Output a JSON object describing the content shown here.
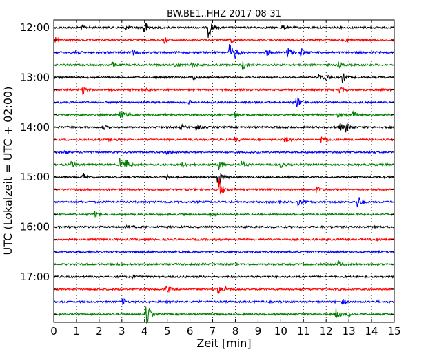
{
  "chart_data": {
    "type": "line",
    "title": "BW.BE1..HHZ 2017-08-31",
    "xlabel": "Zeit  [min]",
    "ylabel": "UTC (Lokalzeit = UTC + 02:00)",
    "xlim": [
      0,
      15
    ],
    "x_ticks": [
      0,
      1,
      2,
      3,
      4,
      5,
      6,
      7,
      8,
      9,
      10,
      11,
      12,
      13,
      14,
      15
    ],
    "x_tick_labels": [
      "0",
      "1",
      "2",
      "3",
      "4",
      "5",
      "6",
      "7",
      "8",
      "9",
      "10",
      "11",
      "12",
      "13",
      "14",
      "15"
    ],
    "grid": "dotted vertical lines at each minute",
    "y_tick_labels": [
      "12:00",
      "13:00",
      "14:00",
      "15:00",
      "16:00",
      "17:00"
    ],
    "line_colors": [
      "#000000",
      "#ff0000",
      "#0000ff",
      "#008000"
    ],
    "series": [
      {
        "start": "12:00",
        "events": [
          [
            4.0,
            1.0
          ],
          [
            6.85,
            1.1
          ],
          [
            1.2,
            0.25
          ],
          [
            3.2,
            0.2
          ],
          [
            10.1,
            0.2
          ]
        ]
      },
      {
        "start": "12:15",
        "events": [
          [
            0.1,
            0.3
          ],
          [
            4.9,
            0.3
          ],
          [
            7.8,
            0.3
          ],
          [
            12.9,
            0.25
          ]
        ]
      },
      {
        "start": "12:30",
        "events": [
          [
            0.9,
            0.3
          ],
          [
            3.5,
            0.25
          ],
          [
            7.75,
            1.0
          ],
          [
            8.0,
            0.5
          ],
          [
            9.4,
            0.4
          ],
          [
            10.3,
            0.7
          ],
          [
            10.9,
            0.5
          ]
        ]
      },
      {
        "start": "12:45",
        "events": [
          [
            2.6,
            0.3
          ],
          [
            5.3,
            0.3
          ],
          [
            6.05,
            0.4
          ],
          [
            8.35,
            0.5
          ],
          [
            12.55,
            0.3
          ]
        ]
      },
      {
        "start": "13:00",
        "events": [
          [
            6.15,
            0.25
          ],
          [
            11.7,
            0.4
          ],
          [
            12.0,
            0.4
          ],
          [
            12.75,
            0.5
          ]
        ]
      },
      {
        "start": "13:15",
        "events": [
          [
            1.3,
            0.4
          ],
          [
            3.95,
            0.2
          ],
          [
            12.6,
            0.4
          ]
        ]
      },
      {
        "start": "13:30",
        "events": [
          [
            10.7,
            0.7
          ],
          [
            6.0,
            0.2
          ]
        ]
      },
      {
        "start": "13:45",
        "events": [
          [
            2.95,
            0.7
          ],
          [
            3.3,
            0.3
          ],
          [
            8.0,
            0.3
          ],
          [
            12.5,
            0.3
          ],
          [
            13.2,
            0.3
          ]
        ]
      },
      {
        "start": "14:00",
        "events": [
          [
            2.2,
            0.2
          ],
          [
            5.6,
            0.3
          ],
          [
            6.3,
            0.4
          ],
          [
            12.6,
            0.5
          ],
          [
            12.9,
            0.5
          ]
        ]
      },
      {
        "start": "14:15",
        "events": [
          [
            2.4,
            0.25
          ],
          [
            8.0,
            0.3
          ],
          [
            10.2,
            0.3
          ],
          [
            11.8,
            0.3
          ],
          [
            11.9,
            0.25
          ]
        ]
      },
      {
        "start": "14:30",
        "events": [
          [
            0.5,
            0.2
          ],
          [
            5.0,
            0.15
          ]
        ]
      },
      {
        "start": "14:45",
        "events": [
          [
            0.8,
            0.3
          ],
          [
            2.9,
            0.8
          ],
          [
            3.2,
            0.5
          ],
          [
            5.7,
            0.3
          ],
          [
            7.3,
            0.7
          ],
          [
            8.3,
            0.4
          ],
          [
            10.0,
            0.3
          ]
        ]
      },
      {
        "start": "15:00",
        "events": [
          [
            1.3,
            0.4
          ],
          [
            7.25,
            1.4
          ],
          [
            5.0,
            0.25
          ]
        ]
      },
      {
        "start": "15:15",
        "events": [
          [
            7.3,
            1.3
          ],
          [
            11.6,
            0.3
          ]
        ]
      },
      {
        "start": "15:30",
        "events": [
          [
            10.8,
            0.3
          ],
          [
            13.4,
            0.8
          ]
        ]
      },
      {
        "start": "15:45",
        "events": [
          [
            1.8,
            0.3
          ],
          [
            6.9,
            0.2
          ]
        ]
      },
      {
        "start": "16:00",
        "events": [
          [
            3.2,
            0.25
          ]
        ]
      },
      {
        "start": "16:15",
        "events": [
          [
            14.2,
            0.3
          ]
        ]
      },
      {
        "start": "16:30",
        "events": []
      },
      {
        "start": "16:45",
        "events": [
          [
            12.55,
            0.4
          ]
        ]
      },
      {
        "start": "17:00",
        "events": [
          [
            3.5,
            0.15
          ]
        ]
      },
      {
        "start": "17:15",
        "events": [
          [
            5.0,
            0.35
          ],
          [
            7.25,
            0.45
          ],
          [
            7.6,
            0.3
          ]
        ]
      },
      {
        "start": "17:30",
        "events": [
          [
            3.05,
            0.35
          ],
          [
            12.7,
            0.3
          ]
        ]
      },
      {
        "start": "17:45",
        "events": [
          [
            4.1,
            1.2
          ],
          [
            12.45,
            0.7
          ],
          [
            13.0,
            0.3
          ]
        ]
      }
    ]
  }
}
